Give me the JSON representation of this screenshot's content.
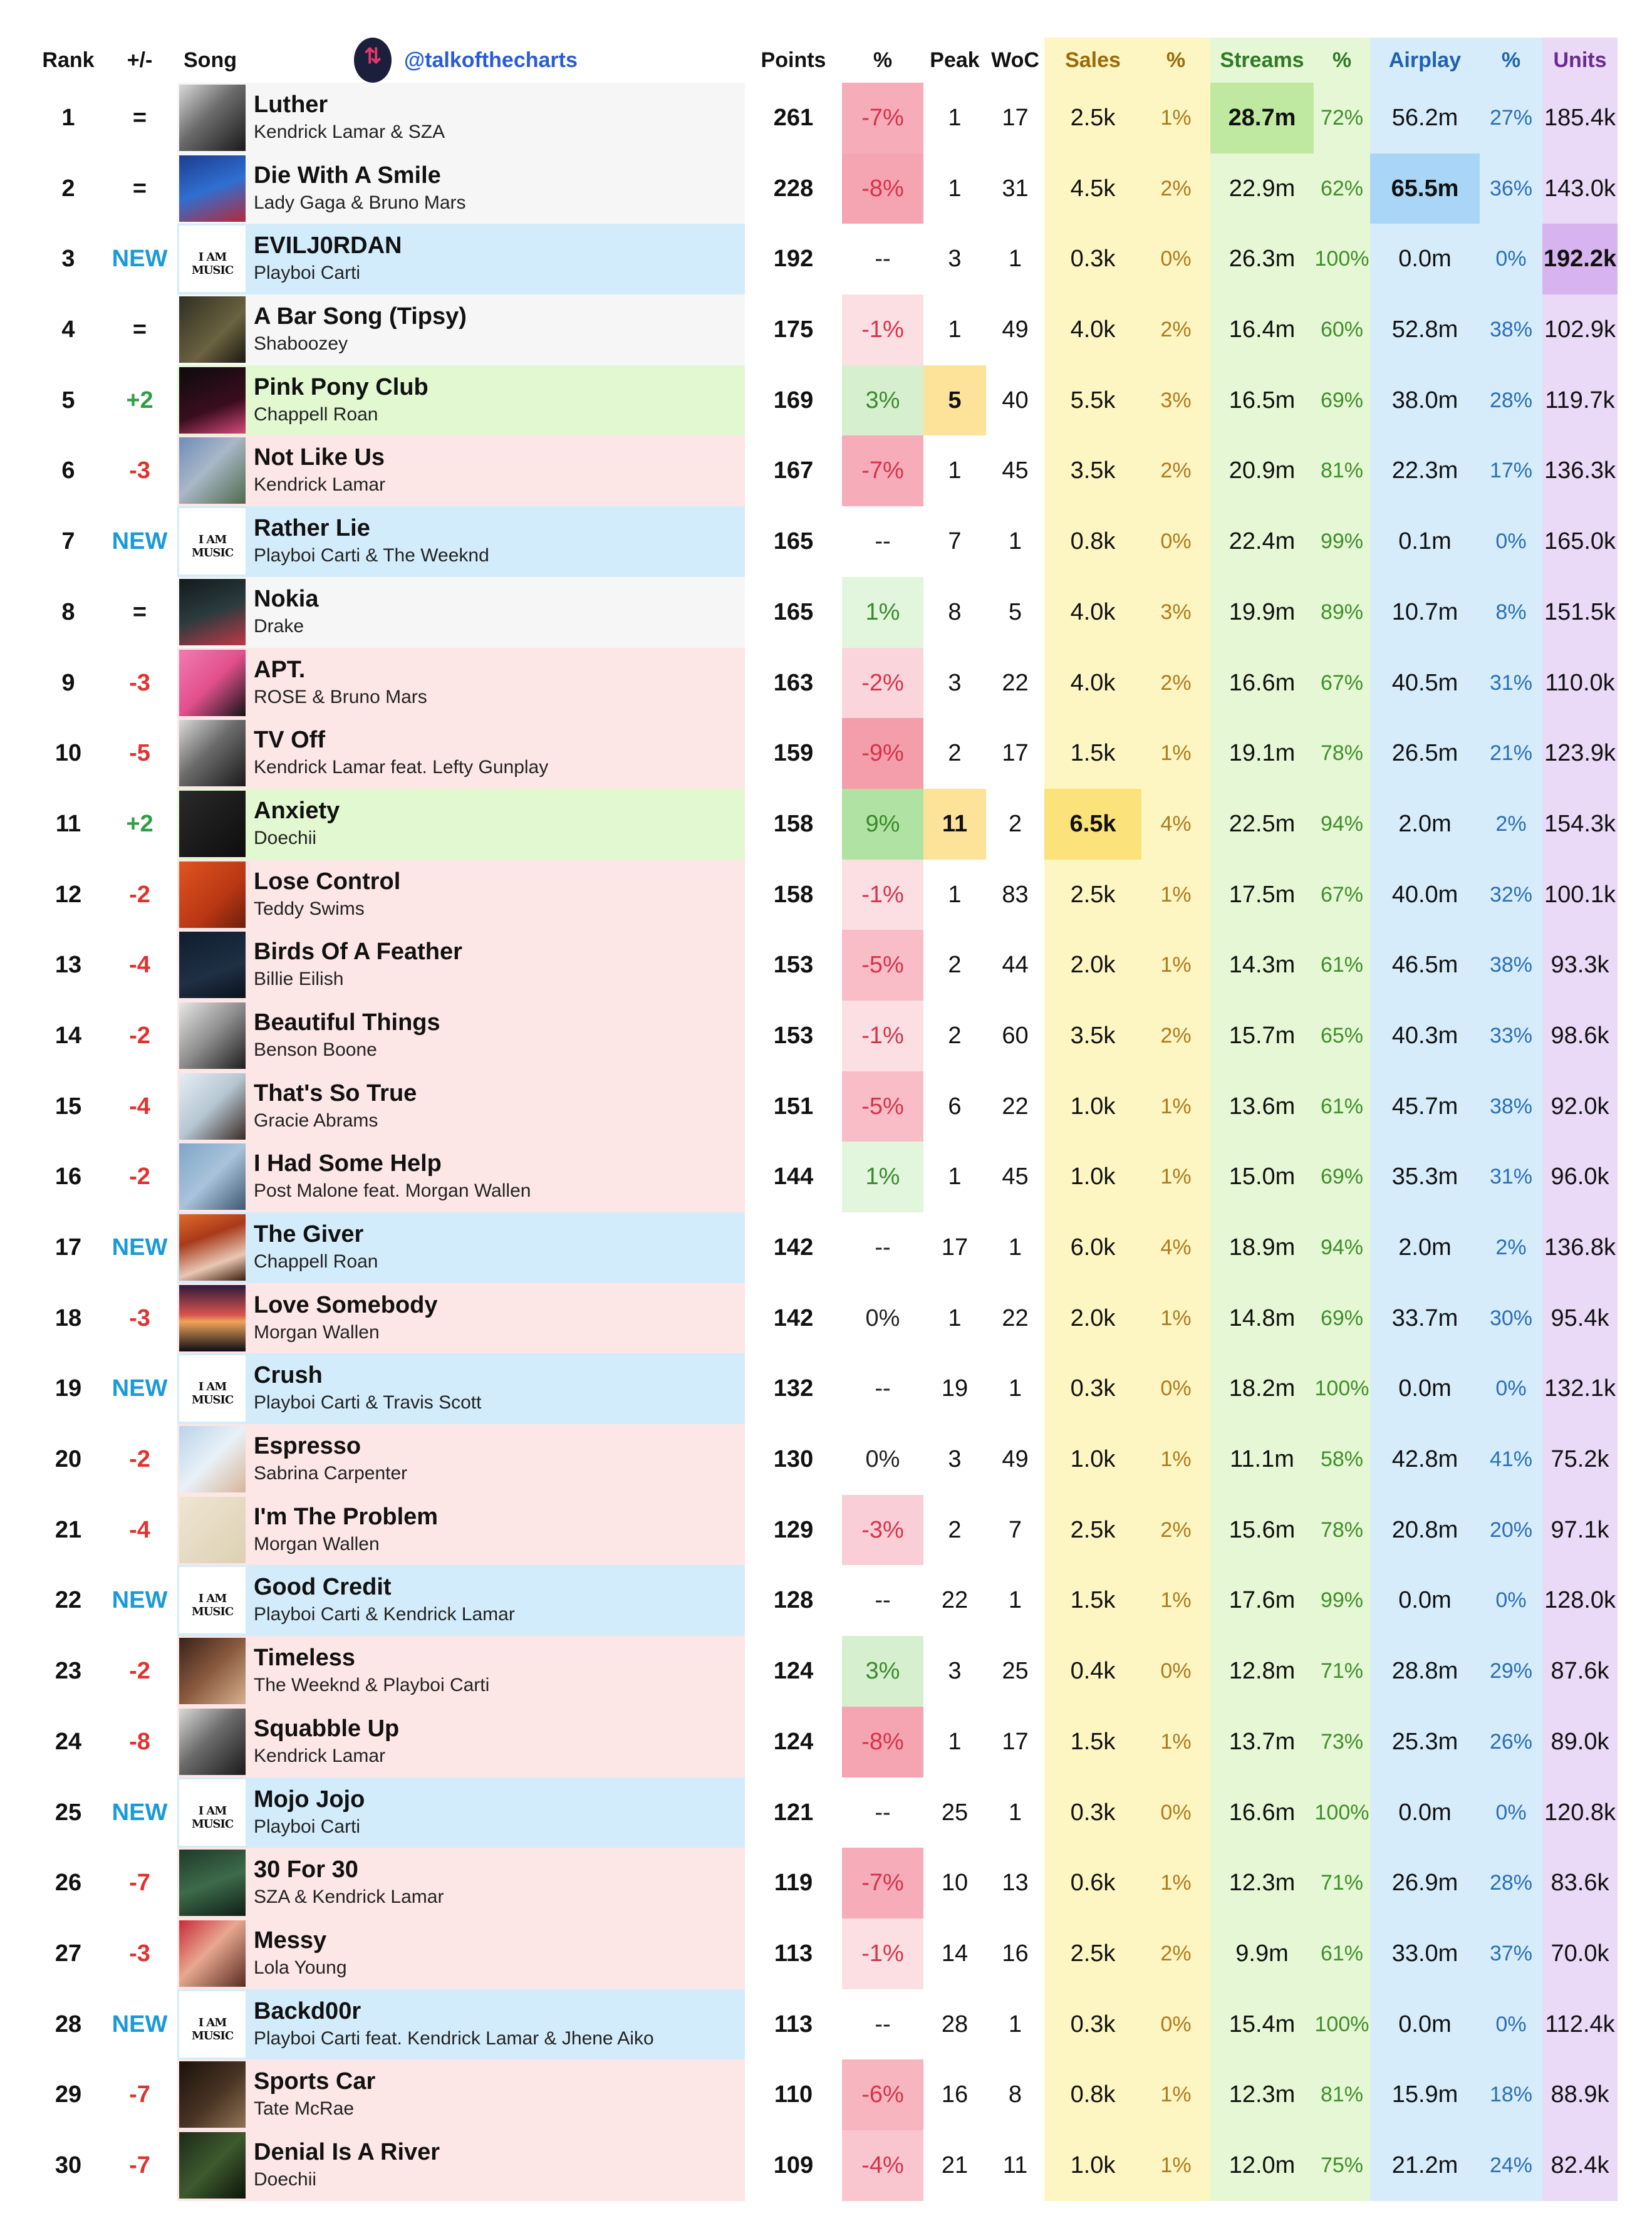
{
  "header": {
    "rank": "Rank",
    "change": "+/-",
    "song": "Song",
    "handle": "@talkofthecharts",
    "points": "Points",
    "pct": "%",
    "peak": "Peak",
    "woc": "WoC",
    "sales": "Sales",
    "sales_pct": "%",
    "streams": "Streams",
    "streams_pct": "%",
    "airplay": "Airplay",
    "airplay_pct": "%",
    "units": "Units"
  },
  "colors": {
    "new": "#1a9ad6",
    "up": "#2e9e44",
    "down": "#e0322f",
    "row_new": "#d3ecfb",
    "row_up": "#e1f8d1",
    "row_down": "#fde6e6",
    "row_same": "#f6f6f6"
  },
  "rows": [
    {
      "rank": "1",
      "chg": "=",
      "title": "Luther",
      "artist": "Kendrick Lamar & SZA",
      "points": "261",
      "pct": "-7%",
      "peak": "1",
      "woc": "17",
      "sales": "2.5k",
      "sales_pct": "1%",
      "streams": "28.7m",
      "streams_pct": "72%",
      "airplay": "56.2m",
      "airplay_pct": "27%",
      "units": "185.4k",
      "art": "dark"
    },
    {
      "rank": "2",
      "chg": "=",
      "title": "Die With A Smile",
      "artist": "Lady Gaga & Bruno Mars",
      "points": "228",
      "pct": "-8%",
      "peak": "1",
      "woc": "31",
      "sales": "4.5k",
      "sales_pct": "2%",
      "streams": "22.9m",
      "streams_pct": "62%",
      "airplay": "65.5m",
      "airplay_pct": "36%",
      "units": "143.0k",
      "art": "blue"
    },
    {
      "rank": "3",
      "chg": "NEW",
      "title": "EVILJ0RDAN",
      "artist": "Playboi Carti",
      "points": "192",
      "pct": "--",
      "peak": "3",
      "woc": "1",
      "sales": "0.3k",
      "sales_pct": "0%",
      "streams": "26.3m",
      "streams_pct": "100%",
      "airplay": "0.0m",
      "airplay_pct": "0%",
      "units": "192.2k",
      "art": "iam"
    },
    {
      "rank": "4",
      "chg": "=",
      "title": "A Bar Song (Tipsy)",
      "artist": "Shaboozey",
      "points": "175",
      "pct": "-1%",
      "peak": "1",
      "woc": "49",
      "sales": "4.0k",
      "sales_pct": "2%",
      "streams": "16.4m",
      "streams_pct": "60%",
      "airplay": "52.8m",
      "airplay_pct": "38%",
      "units": "102.9k",
      "art": "olive"
    },
    {
      "rank": "5",
      "chg": "+2",
      "title": "Pink Pony Club",
      "artist": "Chappell Roan",
      "points": "169",
      "pct": "3%",
      "peak": "5",
      "woc": "40",
      "sales": "5.5k",
      "sales_pct": "3%",
      "streams": "16.5m",
      "streams_pct": "69%",
      "airplay": "38.0m",
      "airplay_pct": "28%",
      "units": "119.7k",
      "art": "pinkdark"
    },
    {
      "rank": "6",
      "chg": "-3",
      "title": "Not Like Us",
      "artist": "Kendrick Lamar",
      "points": "167",
      "pct": "-7%",
      "peak": "1",
      "woc": "45",
      "sales": "3.5k",
      "sales_pct": "2%",
      "streams": "20.9m",
      "streams_pct": "81%",
      "airplay": "22.3m",
      "airplay_pct": "17%",
      "units": "136.3k",
      "art": "aerial"
    },
    {
      "rank": "7",
      "chg": "NEW",
      "title": "Rather Lie",
      "artist": "Playboi Carti & The Weeknd",
      "points": "165",
      "pct": "--",
      "peak": "7",
      "woc": "1",
      "sales": "0.8k",
      "sales_pct": "0%",
      "streams": "22.4m",
      "streams_pct": "99%",
      "airplay": "0.1m",
      "airplay_pct": "0%",
      "units": "165.0k",
      "art": "iam"
    },
    {
      "rank": "8",
      "chg": "=",
      "title": "Nokia",
      "artist": "Drake",
      "points": "165",
      "pct": "1%",
      "peak": "8",
      "woc": "5",
      "sales": "4.0k",
      "sales_pct": "3%",
      "streams": "19.9m",
      "streams_pct": "89%",
      "airplay": "10.7m",
      "airplay_pct": "8%",
      "units": "151.5k",
      "art": "darkteal"
    },
    {
      "rank": "9",
      "chg": "-3",
      "title": "APT.",
      "artist": "ROSE & Bruno Mars",
      "points": "163",
      "pct": "-2%",
      "peak": "3",
      "woc": "22",
      "sales": "4.0k",
      "sales_pct": "2%",
      "streams": "16.6m",
      "streams_pct": "67%",
      "airplay": "40.5m",
      "airplay_pct": "31%",
      "units": "110.0k",
      "art": "pink"
    },
    {
      "rank": "10",
      "chg": "-5",
      "title": "TV Off",
      "artist": "Kendrick Lamar feat. Lefty Gunplay",
      "points": "159",
      "pct": "-9%",
      "peak": "2",
      "woc": "17",
      "sales": "1.5k",
      "sales_pct": "1%",
      "streams": "19.1m",
      "streams_pct": "78%",
      "airplay": "26.5m",
      "airplay_pct": "21%",
      "units": "123.9k",
      "art": "dark"
    },
    {
      "rank": "11",
      "chg": "+2",
      "title": "Anxiety",
      "artist": "Doechii",
      "points": "158",
      "pct": "9%",
      "peak": "11",
      "woc": "2",
      "sales": "6.5k",
      "sales_pct": "4%",
      "streams": "22.5m",
      "streams_pct": "94%",
      "airplay": "2.0m",
      "airplay_pct": "2%",
      "units": "154.3k",
      "art": "black"
    },
    {
      "rank": "12",
      "chg": "-2",
      "title": "Lose Control",
      "artist": "Teddy Swims",
      "points": "158",
      "pct": "-1%",
      "peak": "1",
      "woc": "83",
      "sales": "2.5k",
      "sales_pct": "1%",
      "streams": "17.5m",
      "streams_pct": "67%",
      "airplay": "40.0m",
      "airplay_pct": "32%",
      "units": "100.1k",
      "art": "orange"
    },
    {
      "rank": "13",
      "chg": "-4",
      "title": "Birds Of A Feather",
      "artist": "Billie Eilish",
      "points": "153",
      "pct": "-5%",
      "peak": "2",
      "woc": "44",
      "sales": "2.0k",
      "sales_pct": "1%",
      "streams": "14.3m",
      "streams_pct": "61%",
      "airplay": "46.5m",
      "airplay_pct": "38%",
      "units": "93.3k",
      "art": "navy"
    },
    {
      "rank": "14",
      "chg": "-2",
      "title": "Beautiful Things",
      "artist": "Benson Boone",
      "points": "153",
      "pct": "-1%",
      "peak": "2",
      "woc": "60",
      "sales": "3.5k",
      "sales_pct": "2%",
      "streams": "15.7m",
      "streams_pct": "65%",
      "airplay": "40.3m",
      "airplay_pct": "33%",
      "units": "98.6k",
      "art": "gray"
    },
    {
      "rank": "15",
      "chg": "-4",
      "title": "That's So True",
      "artist": "Gracie Abrams",
      "points": "151",
      "pct": "-5%",
      "peak": "6",
      "woc": "22",
      "sales": "1.0k",
      "sales_pct": "1%",
      "streams": "13.6m",
      "streams_pct": "61%",
      "airplay": "45.7m",
      "airplay_pct": "38%",
      "units": "92.0k",
      "art": "light"
    },
    {
      "rank": "16",
      "chg": "-2",
      "title": "I Had Some Help",
      "artist": "Post Malone feat. Morgan Wallen",
      "points": "144",
      "pct": "1%",
      "peak": "1",
      "woc": "45",
      "sales": "1.0k",
      "sales_pct": "1%",
      "streams": "15.0m",
      "streams_pct": "69%",
      "airplay": "35.3m",
      "airplay_pct": "31%",
      "units": "96.0k",
      "art": "skyblue"
    },
    {
      "rank": "17",
      "chg": "NEW",
      "title": "The Giver",
      "artist": "Chappell Roan",
      "points": "142",
      "pct": "--",
      "peak": "17",
      "woc": "1",
      "sales": "6.0k",
      "sales_pct": "4%",
      "streams": "18.9m",
      "streams_pct": "94%",
      "airplay": "2.0m",
      "airplay_pct": "2%",
      "units": "136.8k",
      "art": "redhat"
    },
    {
      "rank": "18",
      "chg": "-3",
      "title": "Love Somebody",
      "artist": "Morgan Wallen",
      "points": "142",
      "pct": "0%",
      "peak": "1",
      "woc": "22",
      "sales": "2.0k",
      "sales_pct": "1%",
      "streams": "14.8m",
      "streams_pct": "69%",
      "airplay": "33.7m",
      "airplay_pct": "30%",
      "units": "95.4k",
      "art": "sunset"
    },
    {
      "rank": "19",
      "chg": "NEW",
      "title": "Crush",
      "artist": "Playboi Carti & Travis Scott",
      "points": "132",
      "pct": "--",
      "peak": "19",
      "woc": "1",
      "sales": "0.3k",
      "sales_pct": "0%",
      "streams": "18.2m",
      "streams_pct": "100%",
      "airplay": "0.0m",
      "airplay_pct": "0%",
      "units": "132.1k",
      "art": "iam"
    },
    {
      "rank": "20",
      "chg": "-2",
      "title": "Espresso",
      "artist": "Sabrina Carpenter",
      "points": "130",
      "pct": "0%",
      "peak": "3",
      "woc": "49",
      "sales": "1.0k",
      "sales_pct": "1%",
      "streams": "11.1m",
      "streams_pct": "58%",
      "airplay": "42.8m",
      "airplay_pct": "41%",
      "units": "75.2k",
      "art": "lightblue"
    },
    {
      "rank": "21",
      "chg": "-4",
      "title": "I'm The Problem",
      "artist": "Morgan Wallen",
      "points": "129",
      "pct": "-3%",
      "peak": "2",
      "woc": "7",
      "sales": "2.5k",
      "sales_pct": "2%",
      "streams": "15.6m",
      "streams_pct": "78%",
      "airplay": "20.8m",
      "airplay_pct": "20%",
      "units": "97.1k",
      "art": "cream"
    },
    {
      "rank": "22",
      "chg": "NEW",
      "title": "Good Credit",
      "artist": "Playboi Carti & Kendrick Lamar",
      "points": "128",
      "pct": "--",
      "peak": "22",
      "woc": "1",
      "sales": "1.5k",
      "sales_pct": "1%",
      "streams": "17.6m",
      "streams_pct": "99%",
      "airplay": "0.0m",
      "airplay_pct": "0%",
      "units": "128.0k",
      "art": "iam"
    },
    {
      "rank": "23",
      "chg": "-2",
      "title": "Timeless",
      "artist": "The Weeknd & Playboi Carti",
      "points": "124",
      "pct": "3%",
      "peak": "3",
      "woc": "25",
      "sales": "0.4k",
      "sales_pct": "0%",
      "streams": "12.8m",
      "streams_pct": "71%",
      "airplay": "28.8m",
      "airplay_pct": "29%",
      "units": "87.6k",
      "art": "brown"
    },
    {
      "rank": "24",
      "chg": "-8",
      "title": "Squabble Up",
      "artist": "Kendrick Lamar",
      "points": "124",
      "pct": "-8%",
      "peak": "1",
      "woc": "17",
      "sales": "1.5k",
      "sales_pct": "1%",
      "streams": "13.7m",
      "streams_pct": "73%",
      "airplay": "25.3m",
      "airplay_pct": "26%",
      "units": "89.0k",
      "art": "dark"
    },
    {
      "rank": "25",
      "chg": "NEW",
      "title": "Mojo Jojo",
      "artist": "Playboi Carti",
      "points": "121",
      "pct": "--",
      "peak": "25",
      "woc": "1",
      "sales": "0.3k",
      "sales_pct": "0%",
      "streams": "16.6m",
      "streams_pct": "100%",
      "airplay": "0.0m",
      "airplay_pct": "0%",
      "units": "120.8k",
      "art": "iam"
    },
    {
      "rank": "26",
      "chg": "-7",
      "title": "30 For 30",
      "artist": "SZA & Kendrick Lamar",
      "points": "119",
      "pct": "-7%",
      "peak": "10",
      "woc": "13",
      "sales": "0.6k",
      "sales_pct": "1%",
      "streams": "12.3m",
      "streams_pct": "71%",
      "airplay": "26.9m",
      "airplay_pct": "28%",
      "units": "83.6k",
      "art": "green"
    },
    {
      "rank": "27",
      "chg": "-3",
      "title": "Messy",
      "artist": "Lola Young",
      "points": "113",
      "pct": "-1%",
      "peak": "14",
      "woc": "16",
      "sales": "2.5k",
      "sales_pct": "2%",
      "streams": "9.9m",
      "streams_pct": "61%",
      "airplay": "33.0m",
      "airplay_pct": "37%",
      "units": "70.0k",
      "art": "face"
    },
    {
      "rank": "28",
      "chg": "NEW",
      "title": "Backd00r",
      "artist": "Playboi Carti feat. Kendrick Lamar & Jhene Aiko",
      "points": "113",
      "pct": "--",
      "peak": "28",
      "woc": "1",
      "sales": "0.3k",
      "sales_pct": "0%",
      "streams": "15.4m",
      "streams_pct": "100%",
      "airplay": "0.0m",
      "airplay_pct": "0%",
      "units": "112.4k",
      "art": "iam"
    },
    {
      "rank": "29",
      "chg": "-7",
      "title": "Sports Car",
      "artist": "Tate McRae",
      "points": "110",
      "pct": "-6%",
      "peak": "16",
      "woc": "8",
      "sales": "0.8k",
      "sales_pct": "1%",
      "streams": "12.3m",
      "streams_pct": "81%",
      "airplay": "15.9m",
      "airplay_pct": "18%",
      "units": "88.9k",
      "art": "darkbrown"
    },
    {
      "rank": "30",
      "chg": "-7",
      "title": "Denial Is A River",
      "artist": "Doechii",
      "points": "109",
      "pct": "-4%",
      "peak": "21",
      "woc": "11",
      "sales": "1.0k",
      "sales_pct": "1%",
      "streams": "12.0m",
      "streams_pct": "75%",
      "airplay": "21.2m",
      "airplay_pct": "24%",
      "units": "82.4k",
      "art": "darkgreen"
    }
  ],
  "art_logo_text": "I AM MUSIC"
}
